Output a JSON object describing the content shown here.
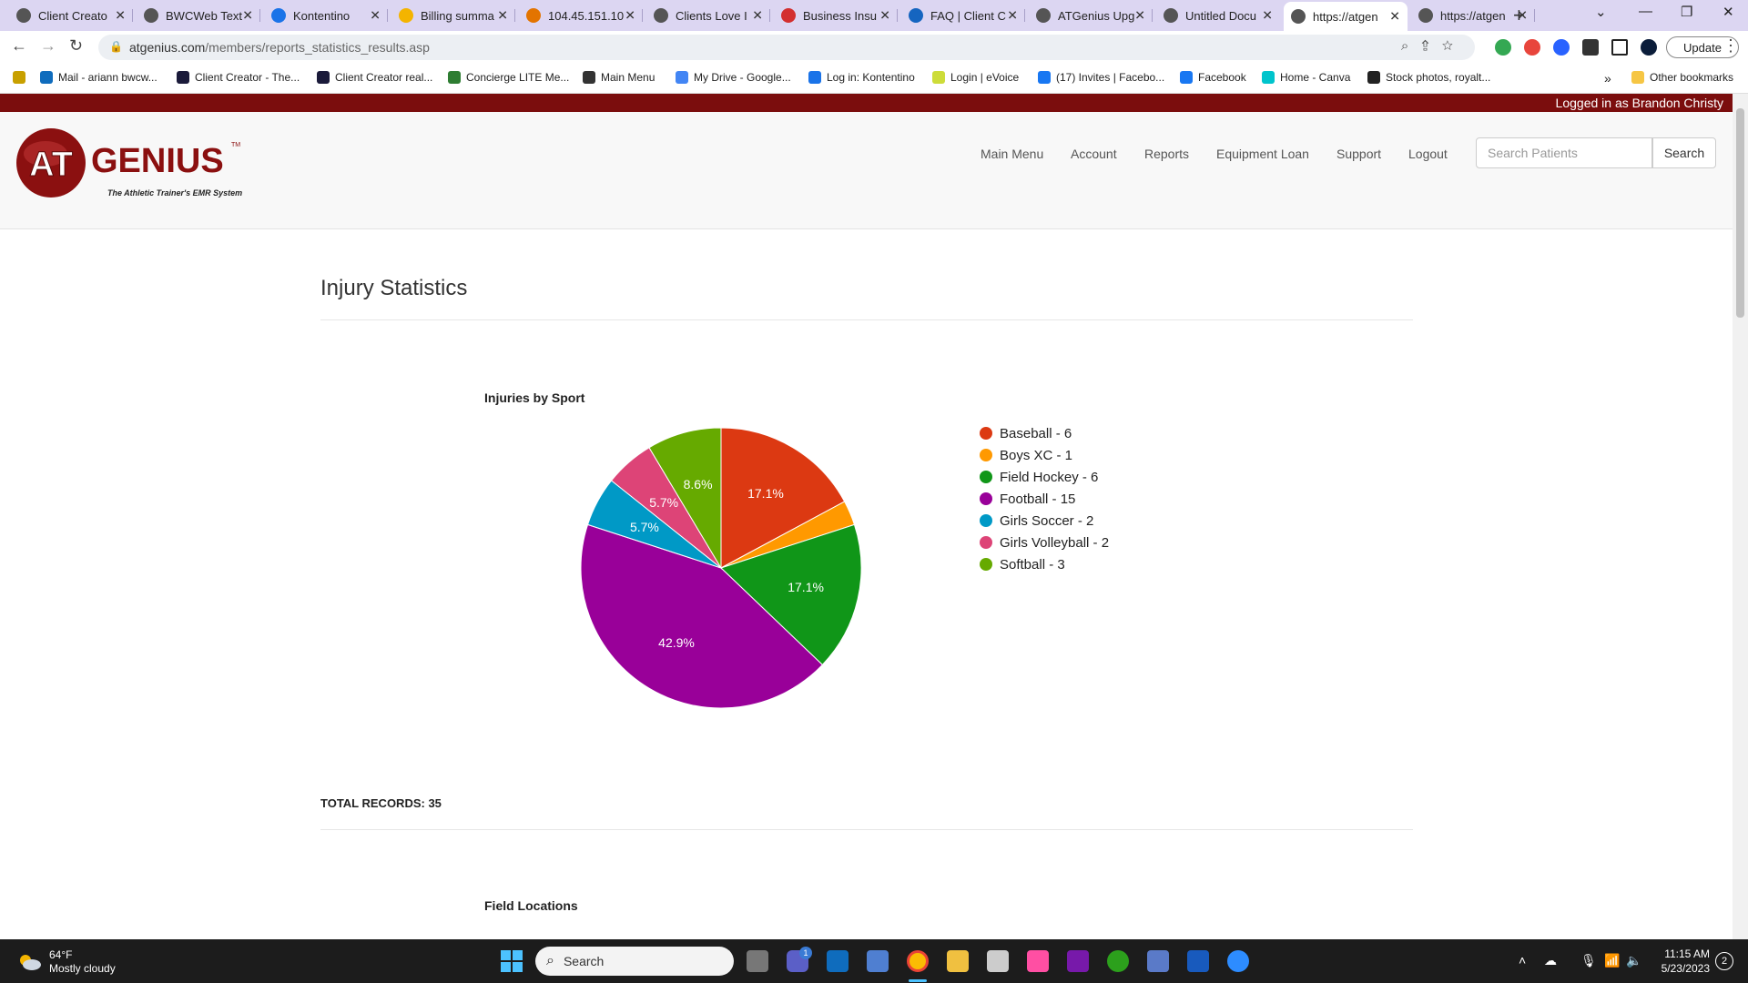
{
  "browser": {
    "tabs": [
      {
        "label": "Client Creato"
      },
      {
        "label": "BWCWeb Text"
      },
      {
        "label": "Kontentino"
      },
      {
        "label": "Billing summa"
      },
      {
        "label": "104.45.151.10"
      },
      {
        "label": "Clients Love I"
      },
      {
        "label": "Business Insu"
      },
      {
        "label": "FAQ | Client C"
      },
      {
        "label": "ATGenius Upg"
      },
      {
        "label": "Untitled Docu"
      },
      {
        "label": "https://atgen"
      },
      {
        "label": "https://atgen"
      }
    ],
    "address": {
      "domain": "atgenius.com",
      "path": "/members/reports_statistics_results.asp"
    },
    "update_label": "Update",
    "bookmarks": [
      {
        "label": "Mail - ariann bwcw..."
      },
      {
        "label": "Client Creator - The..."
      },
      {
        "label": "Client Creator real..."
      },
      {
        "label": "Concierge LITE Me..."
      },
      {
        "label": "Main Menu"
      },
      {
        "label": "My Drive - Google..."
      },
      {
        "label": "Log in: Kontentino"
      },
      {
        "label": "Login | eVoice"
      },
      {
        "label": "(17) Invites | Facebo..."
      },
      {
        "label": "Facebook"
      },
      {
        "label": "Home - Canva"
      },
      {
        "label": "Stock photos, royalt..."
      }
    ],
    "more_bookmarks": "»",
    "other_bookmarks": "Other bookmarks"
  },
  "site": {
    "logged_in": "Logged in as Brandon Christy",
    "logo": {
      "main": "GENIUS",
      "mark": "AT",
      "tagline": "The Athletic Trainer's EMR System",
      "tm": "TM"
    },
    "nav": [
      {
        "label": "Main Menu"
      },
      {
        "label": "Account"
      },
      {
        "label": "Reports"
      },
      {
        "label": "Equipment Loan"
      },
      {
        "label": "Support"
      },
      {
        "label": "Logout"
      }
    ],
    "search": {
      "placeholder": "Search Patients",
      "button": "Search"
    }
  },
  "page": {
    "title": "Injury Statistics",
    "total_records": "TOTAL RECORDS: 35",
    "next_section_title": "Field Locations"
  },
  "colors": {
    "brand": "#7b0d0d"
  },
  "chart_data": {
    "type": "pie",
    "title": "Injuries by Sport",
    "slices": [
      {
        "label": "Baseball - 6",
        "value": 6,
        "pct_label": "17.1%",
        "color": "#dc3912"
      },
      {
        "label": "Boys XC - 1",
        "value": 1,
        "pct_label": "",
        "color": "#ff9900"
      },
      {
        "label": "Field Hockey - 6",
        "value": 6,
        "pct_label": "17.1%",
        "color": "#109618"
      },
      {
        "label": "Football - 15",
        "value": 15,
        "pct_label": "42.9%",
        "color": "#990099"
      },
      {
        "label": "Girls Soccer - 2",
        "value": 2,
        "pct_label": "5.7%",
        "color": "#0099c6"
      },
      {
        "label": "Girls Volleyball - 2",
        "value": 2,
        "pct_label": "5.7%",
        "color": "#dd4477"
      },
      {
        "label": "Softball - 3",
        "value": 3,
        "pct_label": "8.6%",
        "color": "#66aa00"
      }
    ],
    "legend_position": "right"
  },
  "taskbar": {
    "weather": {
      "temp": "64°F",
      "condition": "Mostly cloudy"
    },
    "search_label": "Search",
    "time": "11:15 AM",
    "date": "5/23/2023",
    "notification_count": "2",
    "teams_badge": "1"
  }
}
